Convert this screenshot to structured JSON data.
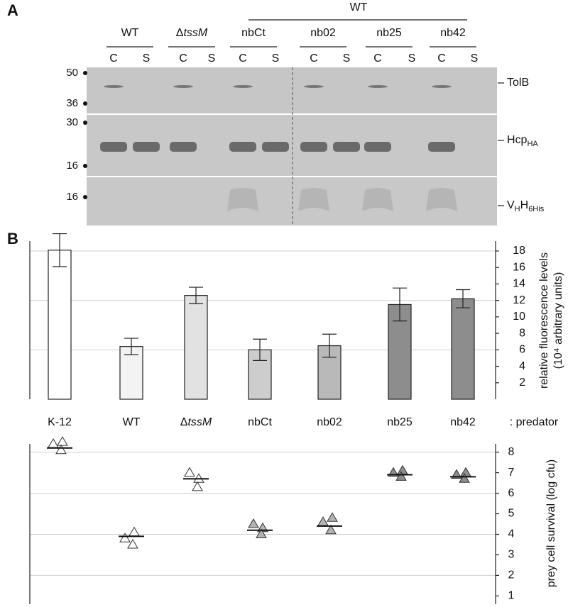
{
  "panel_a": {
    "label": "A",
    "group_label": "WT",
    "lanes": [
      {
        "name": "WT"
      },
      {
        "name": "ΔtssM",
        "italic_from": 1
      },
      {
        "name": "nbCt"
      },
      {
        "name": "nb02"
      },
      {
        "name": "nb25"
      },
      {
        "name": "nb42"
      }
    ],
    "fractions": [
      "C",
      "S"
    ],
    "markers": [
      "50",
      "36",
      "30",
      "16",
      "16"
    ],
    "bands": [
      [
        {
          "text": "TolB"
        }
      ],
      [
        {
          "text": "Hcp"
        },
        {
          "text": "HA",
          "sub": true
        }
      ],
      [
        {
          "text": "V"
        },
        {
          "text": "H",
          "sub": true
        },
        {
          "text": "H"
        },
        {
          "text": "6His",
          "sub": true
        }
      ]
    ]
  },
  "panel_b": {
    "label": "B",
    "predator_label": ": predator"
  },
  "chart_data": [
    {
      "type": "bar",
      "categories": [
        "K-12",
        "WT",
        "ΔtssM",
        "nbCt",
        "nb02",
        "nb25",
        "nb42"
      ],
      "category_italic_from": [
        null,
        null,
        1,
        null,
        null,
        null,
        null
      ],
      "values": [
        18.1,
        6.4,
        12.6,
        6.0,
        6.5,
        11.5,
        12.2
      ],
      "errors": [
        2.0,
        1.0,
        1.0,
        1.3,
        1.4,
        2.0,
        1.1
      ],
      "colors": [
        "#ffffff",
        "#f3f3f3",
        "#e2e2e2",
        "#cdcdcd",
        "#b9b9b9",
        "#8d8d8d",
        "#8d8d8d"
      ],
      "ylabel": [
        "relative fluorescence levels",
        "(10⁴ arbitrary units)"
      ],
      "ylim": [
        0,
        19.2
      ],
      "yticks": [
        2,
        4,
        6,
        8,
        10,
        12,
        14,
        16,
        18
      ],
      "grid_every": 3
    },
    {
      "type": "scatter",
      "points": [
        [
          8.4,
          8.5,
          8.1
        ],
        [
          3.8,
          4.1,
          3.5
        ],
        [
          7.0,
          6.7,
          6.3
        ],
        [
          4.5,
          4.3,
          4.0
        ],
        [
          4.6,
          4.8,
          4.2
        ],
        [
          7.0,
          7.1,
          6.8
        ],
        [
          6.9,
          7.0,
          6.7
        ]
      ],
      "means": [
        8.2,
        3.9,
        6.7,
        4.2,
        4.4,
        6.9,
        6.8
      ],
      "colors": [
        "#ffffff",
        "#ffffff",
        "#ffffff",
        "#b3b3b3",
        "#b3b3b3",
        "#8d8d8d",
        "#8d8d8d"
      ],
      "ylabel": "prey cell survival (log cfu)",
      "ylim": [
        0.6,
        8.4
      ],
      "yticks": [
        1,
        2,
        3,
        4,
        5,
        6,
        7,
        8
      ],
      "grid_every": 2
    }
  ]
}
